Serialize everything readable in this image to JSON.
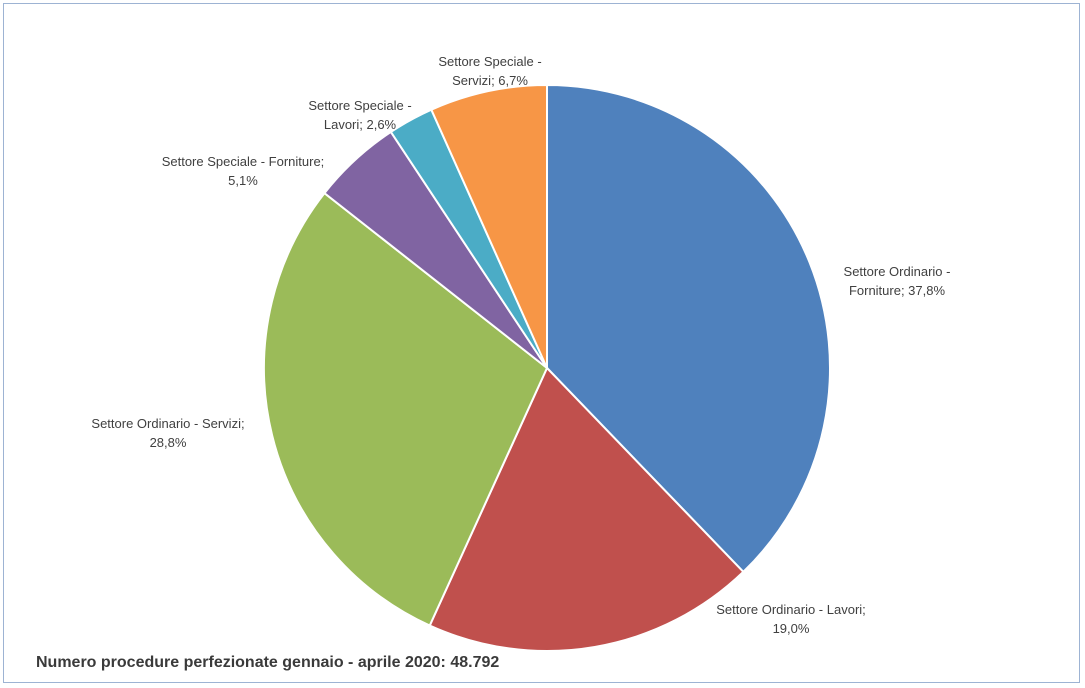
{
  "chart_data": {
    "type": "pie",
    "title": "",
    "slices": [
      {
        "label": "Settore Ordinario - Forniture",
        "value": 37.8,
        "display": "37,8%",
        "color": "#4f81bd"
      },
      {
        "label": "Settore Ordinario - Lavori",
        "value": 19.0,
        "display": "19,0%",
        "color": "#c0504d"
      },
      {
        "label": "Settore Ordinario - Servizi",
        "value": 28.8,
        "display": "28,8%",
        "color": "#9bbb59"
      },
      {
        "label": "Settore Speciale - Forniture",
        "value": 5.1,
        "display": "5,1%",
        "color": "#8064a2"
      },
      {
        "label": "Settore Speciale - Lavori",
        "value": 2.6,
        "display": "2,6%",
        "color": "#4bacc6"
      },
      {
        "label": "Settore Speciale - Servizi",
        "value": 6.7,
        "display": "6,7%",
        "color": "#f79646"
      }
    ],
    "label_lines": [
      [
        "Settore Ordinario -",
        "Forniture; 37,8%"
      ],
      [
        "Settore Ordinario - Lavori;",
        "19,0%"
      ],
      [
        "Settore Ordinario - Servizi;",
        "28,8%"
      ],
      [
        "Settore Speciale - Forniture;",
        "5,1%"
      ],
      [
        "Settore Speciale -",
        "Lavori; 2,6%"
      ],
      [
        "Settore Speciale -",
        "Servizi; 6,7%"
      ]
    ],
    "legend": "none"
  },
  "footer": {
    "note": "Numero procedure perfezionate gennaio - aprile 2020:  48.792"
  }
}
